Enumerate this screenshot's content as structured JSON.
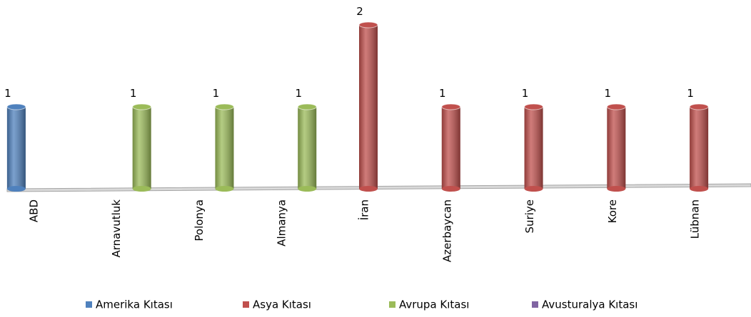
{
  "chart_data": {
    "type": "bar",
    "categories": [
      "ABD",
      "Arnavutluk",
      "Polonya",
      "Almanya",
      "İran",
      "Azerbaycan",
      "Suriye",
      "Kore",
      "Lübnan"
    ],
    "series": [
      {
        "name": "Amerika Kıtası",
        "color": "#4f81bd",
        "values": [
          1,
          null,
          null,
          null,
          null,
          null,
          null,
          null,
          null
        ]
      },
      {
        "name": "Asya Kıtası",
        "color": "#c0504d",
        "values": [
          null,
          null,
          null,
          null,
          2,
          1,
          1,
          1,
          1
        ]
      },
      {
        "name": "Avrupa Kıtası",
        "color": "#9bbb59",
        "values": [
          null,
          1,
          1,
          1,
          null,
          null,
          null,
          null,
          null
        ]
      },
      {
        "name": "Avusturalya Kıtası",
        "color": "#8064a2",
        "values": [
          null,
          null,
          null,
          null,
          null,
          null,
          null,
          null,
          null
        ]
      }
    ],
    "ylim": [
      0,
      2
    ],
    "legend": "bottom"
  }
}
